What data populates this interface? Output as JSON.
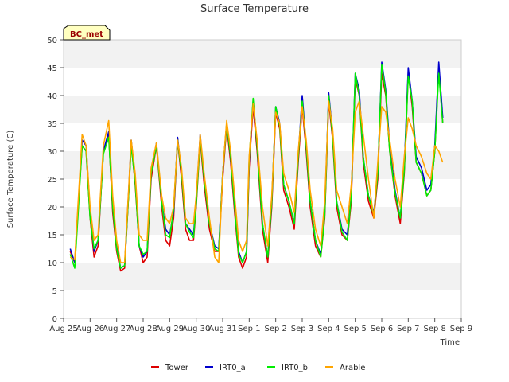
{
  "chart_data": {
    "type": "line",
    "title": "Surface Temperature",
    "xlabel": "Time",
    "ylabel": "Surface Temperature (C)",
    "badge": "BC_met",
    "ylim": [
      0,
      50
    ],
    "yticks": [
      0,
      5,
      10,
      15,
      20,
      25,
      30,
      35,
      40,
      45,
      50
    ],
    "xlim": [
      0,
      15
    ],
    "xtick_labels": [
      "Aug 25",
      "Aug 26",
      "Aug 27",
      "Aug 28",
      "Aug 29",
      "Aug 30",
      "Aug 31",
      "Sep 1",
      "Sep 2",
      "Sep 3",
      "Sep 4",
      "Sep 5",
      "Sep 6",
      "Sep 7",
      "Sep 8",
      "Sep 9"
    ],
    "x_units": "days since Aug 25",
    "grid": "horizontal bands",
    "legend_position": "bottom",
    "colors": {
      "Tower": "#dd0000",
      "IRT0_a": "#0000cc",
      "IRT0_b": "#00ee00",
      "Arable": "#ffa500"
    },
    "series": [
      {
        "name": "Tower",
        "x": [
          0.25,
          0.42,
          0.55,
          0.7,
          0.85,
          1.0,
          1.15,
          1.3,
          1.5,
          1.7,
          1.85,
          2.0,
          2.15,
          2.3,
          2.45,
          2.55,
          2.7,
          2.85,
          3.0,
          3.15,
          3.3,
          3.5,
          3.7,
          3.85,
          4.0,
          4.15,
          4.3,
          4.45,
          4.6,
          4.75,
          4.9,
          5.0,
          5.15,
          5.3,
          5.5,
          5.7,
          5.85,
          6.0,
          6.15,
          6.3,
          6.45,
          6.6,
          6.75,
          6.9,
          7.0,
          7.15,
          7.3,
          7.5,
          7.7,
          7.85,
          8.0,
          8.15,
          8.3,
          8.5,
          8.7,
          8.85,
          9.0,
          9.15,
          9.3,
          9.5,
          9.7,
          9.85,
          10.0,
          10.15,
          10.3,
          10.5,
          10.7,
          10.85,
          11.0,
          11.15,
          11.3,
          11.5,
          11.7,
          11.85,
          12.0,
          12.15,
          12.3,
          12.5,
          12.7,
          12.85,
          13.0,
          13.15,
          13.3,
          13.5,
          13.7,
          13.85,
          14.0,
          14.15,
          14.3
        ],
        "y": [
          12.0,
          10.0,
          20.0,
          31.0,
          30.0,
          18.0,
          11.0,
          13.0,
          30.0,
          33.0,
          19.0,
          12.0,
          8.5,
          9.0,
          22.0,
          31.5,
          24.0,
          13.0,
          10.0,
          11.0,
          25.0,
          31.0,
          20.0,
          14.0,
          13.0,
          18.0,
          32.0,
          25.0,
          16.0,
          14.0,
          14.0,
          20.0,
          32.0,
          24.0,
          16.0,
          12.0,
          12.0,
          25.0,
          34.5,
          28.0,
          19.0,
          11.0,
          9.0,
          11.0,
          27.0,
          38.0,
          30.0,
          16.0,
          10.0,
          20.0,
          37.0,
          34.0,
          23.0,
          20.0,
          16.0,
          28.0,
          38.0,
          30.0,
          20.0,
          13.0,
          11.0,
          18.0,
          39.0,
          32.0,
          20.0,
          15.0,
          14.0,
          21.0,
          43.0,
          40.0,
          28.0,
          21.0,
          18.0,
          25.0,
          44.0,
          40.0,
          30.0,
          22.0,
          17.0,
          26.0,
          44.0,
          38.0,
          28.0,
          26.0,
          22.0,
          23.0,
          30.0,
          45.0,
          35.0
        ]
      },
      {
        "name": "IRT0_a",
        "x": [
          0.25,
          0.42,
          0.55,
          0.7,
          0.85,
          1.0,
          1.15,
          1.3,
          1.5,
          1.7,
          1.85,
          2.0,
          2.15,
          2.3,
          2.45,
          2.55,
          2.7,
          2.85,
          3.0,
          3.15,
          3.3,
          3.5,
          3.7,
          3.85,
          4.0,
          4.15,
          4.3,
          4.45,
          4.6,
          4.75,
          4.9,
          5.0,
          5.15,
          5.3,
          5.5,
          5.7,
          5.85,
          6.0,
          6.15,
          6.3,
          6.45,
          6.6,
          6.75,
          6.9,
          7.0,
          7.15,
          7.3,
          7.5,
          7.7,
          7.85,
          8.0,
          8.15,
          8.3,
          8.5,
          8.7,
          8.85,
          9.0,
          9.15,
          9.3,
          9.5,
          9.7,
          9.85,
          10.0,
          10.15,
          10.3,
          10.5,
          10.7,
          10.85,
          11.0,
          11.15,
          11.3,
          11.5,
          11.7,
          11.85,
          12.0,
          12.15,
          12.3,
          12.5,
          12.7,
          12.85,
          13.0,
          13.15,
          13.3,
          13.5,
          13.7,
          13.85,
          14.0,
          14.15,
          14.3
        ],
        "y": [
          12.5,
          10.0,
          20.0,
          32.0,
          31.0,
          19.0,
          12.0,
          14.0,
          30.0,
          33.5,
          20.0,
          13.0,
          9.0,
          9.5,
          22.5,
          32.0,
          25.0,
          13.0,
          11.0,
          12.0,
          26.0,
          31.5,
          21.0,
          16.0,
          15.0,
          19.0,
          32.5,
          26.0,
          17.0,
          16.0,
          15.0,
          21.0,
          33.0,
          25.0,
          17.0,
          13.0,
          12.5,
          26.0,
          35.0,
          29.0,
          20.0,
          12.0,
          10.0,
          12.0,
          28.0,
          39.0,
          31.0,
          17.0,
          11.0,
          21.0,
          38.0,
          35.0,
          24.0,
          21.0,
          17.0,
          29.0,
          40.0,
          31.0,
          21.0,
          14.0,
          11.5,
          19.0,
          40.5,
          33.0,
          21.0,
          16.0,
          15.0,
          22.0,
          44.0,
          41.0,
          29.0,
          22.0,
          19.0,
          26.0,
          46.0,
          41.0,
          31.0,
          23.0,
          18.0,
          27.0,
          45.0,
          39.0,
          29.0,
          27.0,
          23.0,
          24.0,
          31.0,
          46.0,
          36.0
        ]
      },
      {
        "name": "IRT0_b",
        "x": [
          0.25,
          0.42,
          0.55,
          0.7,
          0.85,
          1.0,
          1.15,
          1.3,
          1.5,
          1.7,
          1.85,
          2.0,
          2.15,
          2.3,
          2.45,
          2.55,
          2.7,
          2.85,
          3.0,
          3.15,
          3.3,
          3.5,
          3.7,
          3.85,
          4.0,
          4.15,
          4.3,
          4.45,
          4.6,
          4.75,
          4.9,
          5.0,
          5.15,
          5.3,
          5.5,
          5.7,
          5.85,
          6.0,
          6.15,
          6.3,
          6.45,
          6.6,
          6.75,
          6.9,
          7.0,
          7.15,
          7.3,
          7.5,
          7.7,
          7.85,
          8.0,
          8.15,
          8.3,
          8.5,
          8.7,
          8.85,
          9.0,
          9.15,
          9.3,
          9.5,
          9.7,
          9.85,
          10.0,
          10.15,
          10.3,
          10.5,
          10.7,
          10.85,
          11.0,
          11.15,
          11.3,
          11.5,
          11.7,
          11.85,
          12.0,
          12.15,
          12.3,
          12.5,
          12.7,
          12.85,
          13.0,
          13.15,
          13.3,
          13.5,
          13.7,
          13.85,
          14.0,
          14.15,
          14.3
        ],
        "y": [
          11.5,
          9.0,
          19.0,
          31.0,
          30.0,
          18.0,
          12.5,
          14.0,
          29.5,
          32.5,
          20.0,
          12.5,
          9.0,
          9.5,
          22.0,
          31.0,
          24.5,
          13.0,
          11.5,
          12.0,
          26.0,
          31.0,
          21.0,
          15.0,
          14.5,
          19.5,
          32.0,
          26.0,
          17.0,
          15.5,
          14.5,
          20.5,
          32.5,
          25.0,
          17.0,
          12.5,
          12.0,
          26.0,
          35.0,
          29.0,
          20.0,
          11.5,
          10.0,
          12.0,
          28.5,
          39.5,
          31.0,
          17.0,
          11.0,
          21.0,
          38.0,
          34.5,
          24.0,
          21.0,
          17.0,
          29.0,
          39.0,
          31.0,
          21.0,
          14.0,
          11.0,
          18.5,
          40.0,
          32.5,
          21.0,
          15.5,
          14.0,
          22.0,
          44.0,
          40.0,
          29.0,
          22.0,
          18.5,
          26.0,
          45.5,
          40.5,
          30.0,
          22.5,
          18.0,
          26.5,
          43.5,
          39.0,
          28.0,
          26.0,
          22.0,
          23.0,
          30.0,
          44.0,
          35.0
        ]
      },
      {
        "name": "Arable",
        "x": [
          0.25,
          0.42,
          0.55,
          0.7,
          0.85,
          1.0,
          1.15,
          1.3,
          1.5,
          1.7,
          1.85,
          2.0,
          2.15,
          2.3,
          2.45,
          2.55,
          2.7,
          2.85,
          3.0,
          3.15,
          3.3,
          3.5,
          3.7,
          3.85,
          4.0,
          4.15,
          4.3,
          4.45,
          4.6,
          4.75,
          4.9,
          5.0,
          5.15,
          5.3,
          5.5,
          5.7,
          5.85,
          6.0,
          6.15,
          6.3,
          6.45,
          6.6,
          6.75,
          6.9,
          7.0,
          7.15,
          7.3,
          7.5,
          7.7,
          7.85,
          8.0,
          8.15,
          8.3,
          8.5,
          8.7,
          8.85,
          9.0,
          9.15,
          9.3,
          9.5,
          9.7,
          9.85,
          10.0,
          10.15,
          10.3,
          10.5,
          10.7,
          10.85,
          11.0,
          11.15,
          11.3,
          11.5,
          11.7,
          11.85,
          12.0,
          12.15,
          12.3,
          12.5,
          12.7,
          12.85,
          13.0,
          13.15,
          13.3,
          13.5,
          13.7,
          13.85,
          14.0,
          14.15,
          14.3
        ],
        "y": [
          11.0,
          10.5,
          21.0,
          33.0,
          31.0,
          20.0,
          14.0,
          15.0,
          31.0,
          35.5,
          22.0,
          14.0,
          10.0,
          10.0,
          23.0,
          32.0,
          26.0,
          15.0,
          14.0,
          14.0,
          27.0,
          31.5,
          22.0,
          18.0,
          17.0,
          20.0,
          32.0,
          27.0,
          18.0,
          17.0,
          17.0,
          22.0,
          33.0,
          26.0,
          18.0,
          11.0,
          10.0,
          26.0,
          35.5,
          30.0,
          22.0,
          14.0,
          12.0,
          14.0,
          29.0,
          38.5,
          32.0,
          20.0,
          13.0,
          22.0,
          37.0,
          35.0,
          26.0,
          23.0,
          19.0,
          30.0,
          38.0,
          32.0,
          23.0,
          16.0,
          13.0,
          21.0,
          39.0,
          34.0,
          23.0,
          20.0,
          17.0,
          24.0,
          37.0,
          39.0,
          33.0,
          25.0,
          18.0,
          28.0,
          38.0,
          37.0,
          32.0,
          25.0,
          20.0,
          29.0,
          36.0,
          34.0,
          31.0,
          29.0,
          26.0,
          25.0,
          31.0,
          30.0,
          28.0
        ]
      }
    ]
  }
}
